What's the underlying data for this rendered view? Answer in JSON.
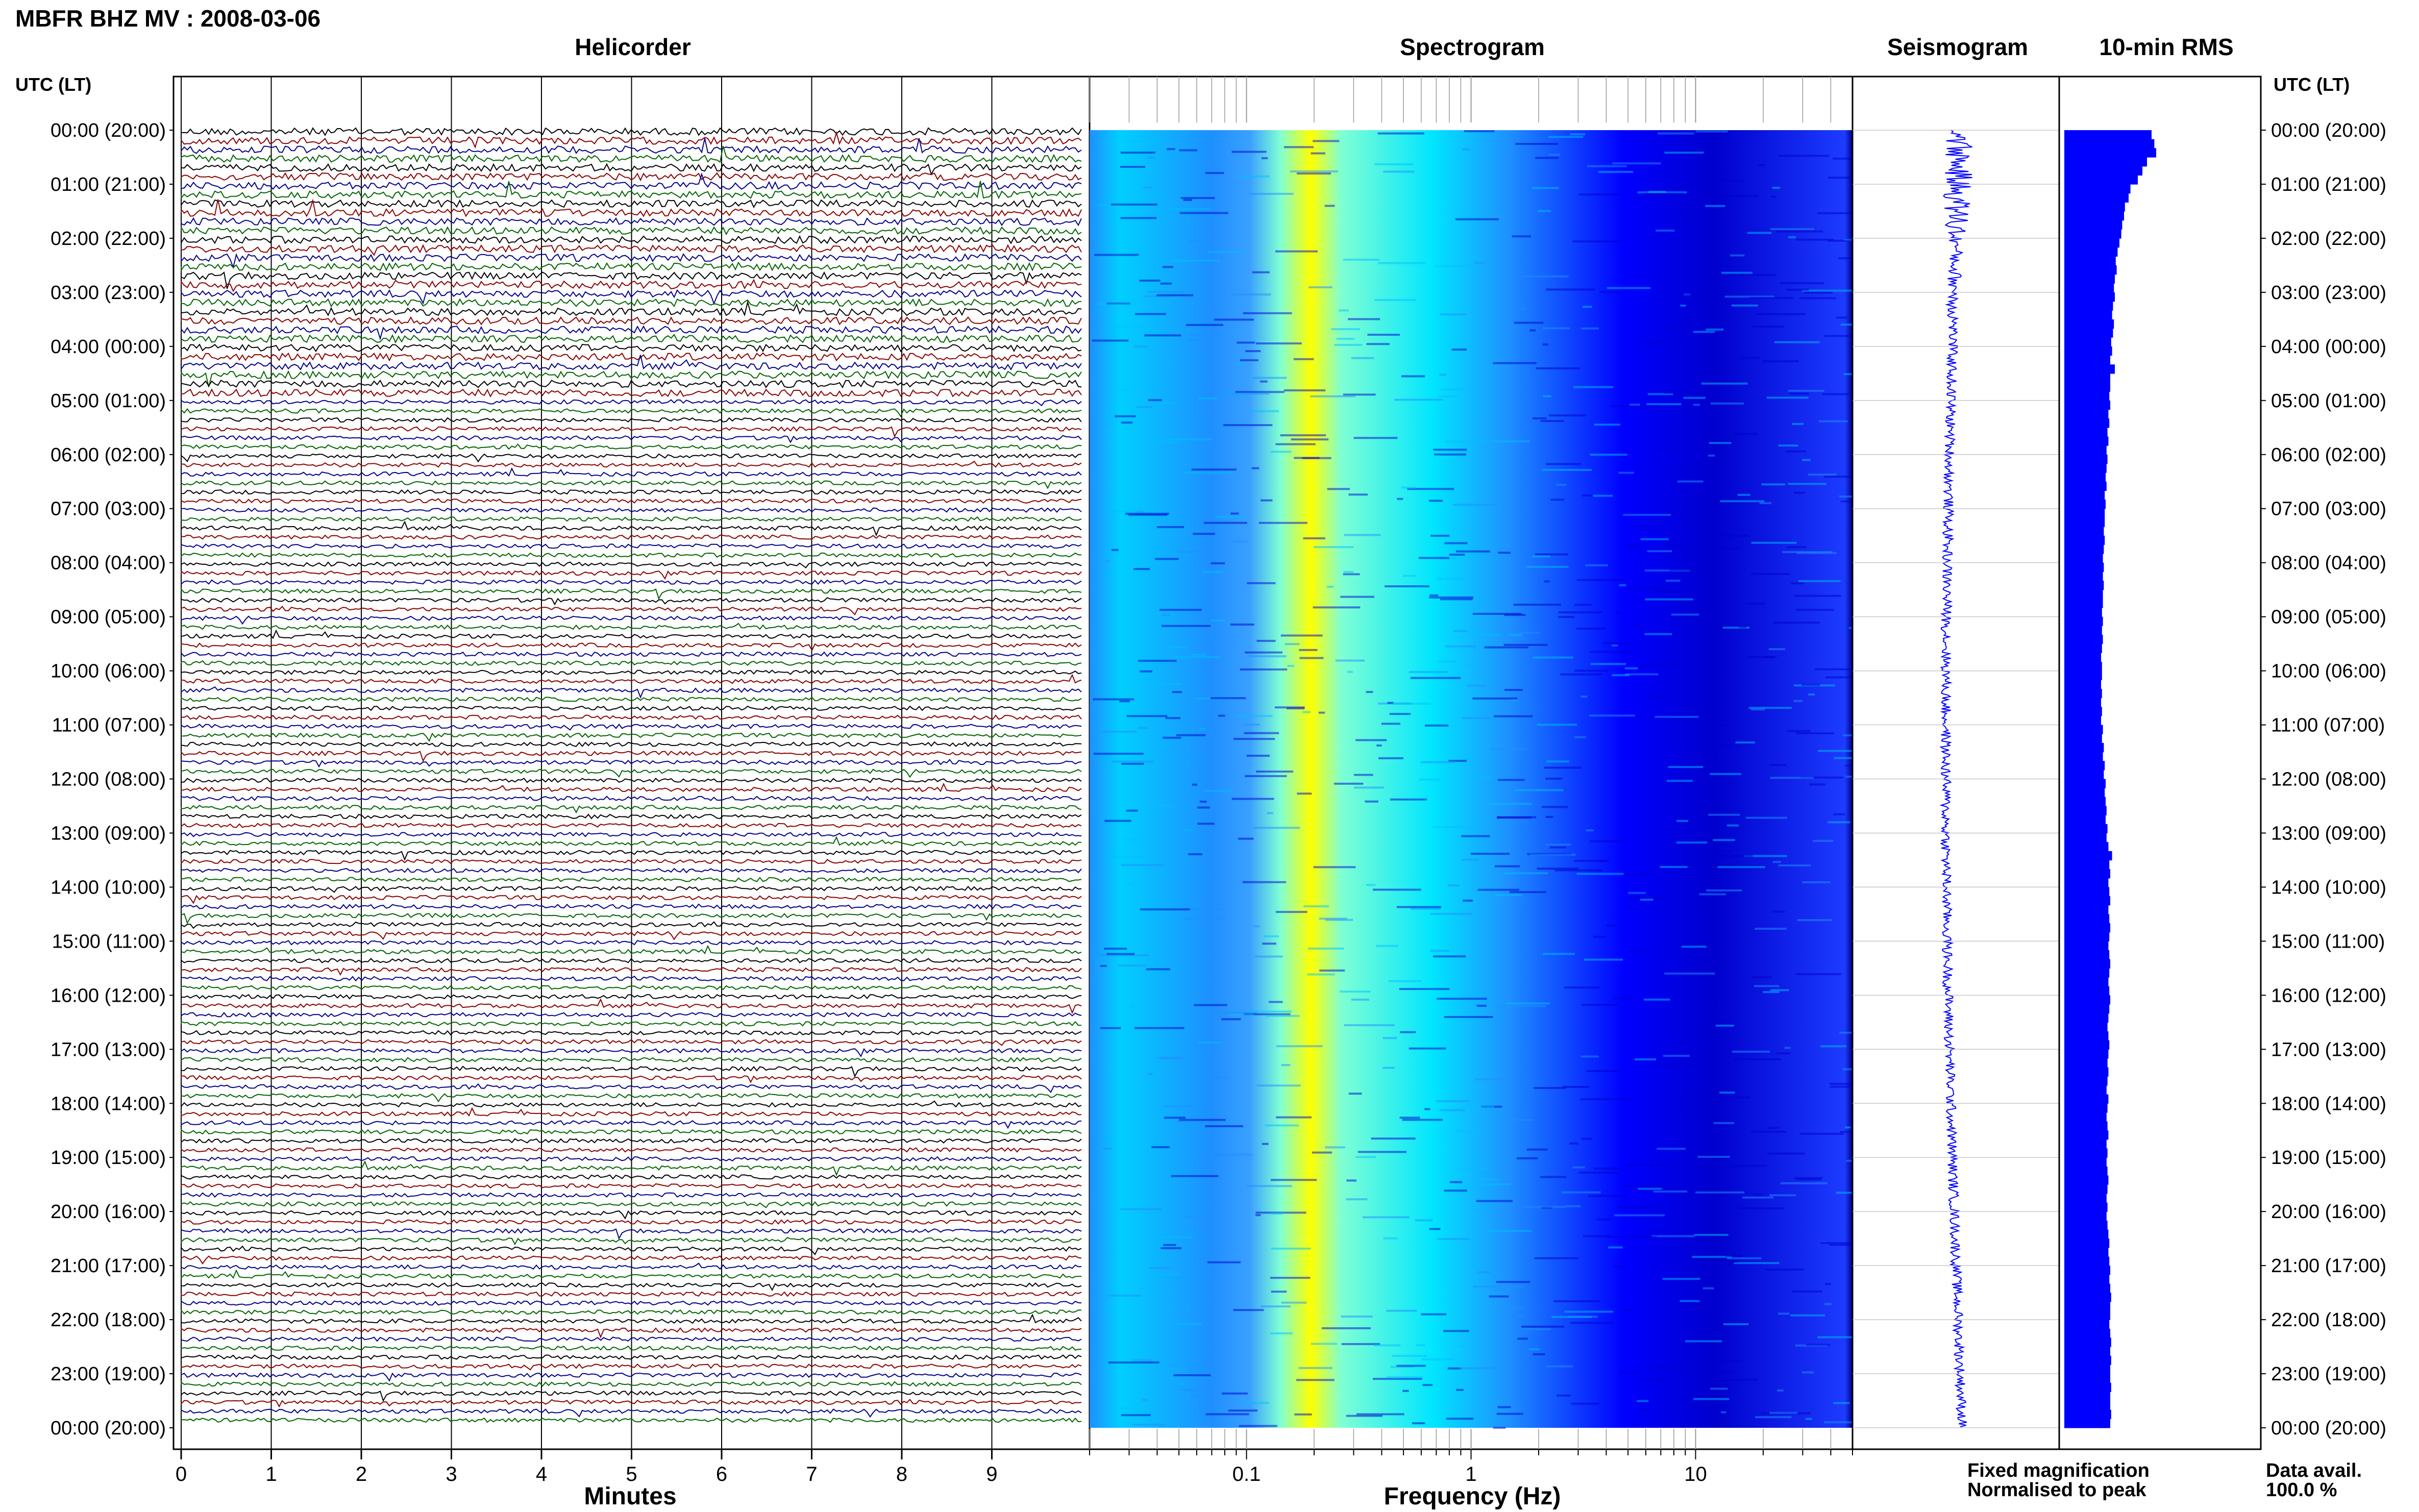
{
  "header": {
    "station_title": "MBFR BHZ MV : 2008-03-06",
    "utc_lt_label": "UTC (LT)"
  },
  "panels": {
    "helicorder": "Helicorder",
    "spectrogram": "Spectrogram",
    "seismogram": "Seismogram",
    "rms": "10-min RMS"
  },
  "legend": {
    "fixed_magnification": "Fixed magnification",
    "normalised_to_peak": "Normalised to peak",
    "fixed_color": "#0000ff",
    "normalised_color": "#ff0000"
  },
  "data_availability": {
    "label": "Data avail.",
    "value": "100.0 %"
  },
  "colors": {
    "trace_cycle": [
      "#000000",
      "#8b0000",
      "#00008b",
      "#006400"
    ],
    "seismogram": "#0000ff",
    "rms_bars": "#0000ff",
    "spectrogram_colormap": [
      "#00008b",
      "#0000ff",
      "#1e90ff",
      "#00e5ff",
      "#7fffd4",
      "#ffff00"
    ]
  },
  "chart_data": [
    {
      "type": "line",
      "panel": "Helicorder",
      "xlabel": "Minutes",
      "x_ticks": [
        0,
        1,
        2,
        3,
        4,
        5,
        6,
        7,
        8,
        9
      ],
      "xlim": [
        0,
        10
      ],
      "y_tick_labels": [
        "00:00 (20:00)",
        "01:00 (21:00)",
        "02:00 (22:00)",
        "03:00 (23:00)",
        "04:00 (00:00)",
        "05:00 (01:00)",
        "06:00 (02:00)",
        "07:00 (03:00)",
        "08:00 (04:00)",
        "09:00 (05:00)",
        "10:00 (06:00)",
        "11:00 (07:00)",
        "12:00 (08:00)",
        "13:00 (09:00)",
        "14:00 (10:00)",
        "15:00 (11:00)",
        "16:00 (12:00)",
        "17:00 (13:00)",
        "18:00 (14:00)",
        "19:00 (15:00)",
        "20:00 (16:00)",
        "21:00 (17:00)",
        "22:00 (18:00)",
        "23:00 (19:00)",
        "00:00 (20:00)"
      ],
      "rows_per_hour": 6,
      "total_rows": 144
    },
    {
      "type": "heatmap",
      "panel": "Spectrogram",
      "xlabel": "Frequency (Hz)",
      "x_scale": "log",
      "xlim": [
        0.02,
        50
      ],
      "x_tick_labels": [
        "0.1",
        "1",
        "10"
      ],
      "x_tick_values": [
        0.1,
        1,
        10
      ],
      "peak_frequency_hz": 0.25
    },
    {
      "type": "line",
      "panel": "Seismogram"
    },
    {
      "type": "bar",
      "panel": "10-min RMS",
      "orientation": "horizontal",
      "values": [
        0.95,
        0.98,
        1.0,
        0.9,
        0.85,
        0.8,
        0.72,
        0.7,
        0.66,
        0.65,
        0.63,
        0.62,
        0.6,
        0.58,
        0.56,
        0.57,
        0.55,
        0.54,
        0.55,
        0.53,
        0.52,
        0.54,
        0.53,
        0.51,
        0.52,
        0.5,
        0.55,
        0.5,
        0.5,
        0.49,
        0.5,
        0.48,
        0.49,
        0.47,
        0.48,
        0.46,
        0.47,
        0.46,
        0.45,
        0.46,
        0.44,
        0.45,
        0.44,
        0.44,
        0.43,
        0.44,
        0.43,
        0.42,
        0.43,
        0.42,
        0.43,
        0.42,
        0.42,
        0.41,
        0.42,
        0.41,
        0.42,
        0.41,
        0.4,
        0.41,
        0.41,
        0.4,
        0.41,
        0.4,
        0.41,
        0.4,
        0.42,
        0.41,
        0.43,
        0.42,
        0.44,
        0.43,
        0.45,
        0.44,
        0.45,
        0.46,
        0.45,
        0.47,
        0.46,
        0.48,
        0.52,
        0.49,
        0.5,
        0.48,
        0.49,
        0.5,
        0.48,
        0.49,
        0.5,
        0.49,
        0.48,
        0.49,
        0.5,
        0.49,
        0.48,
        0.49,
        0.5,
        0.49,
        0.48,
        0.47,
        0.48,
        0.49,
        0.48,
        0.47,
        0.48,
        0.47,
        0.46,
        0.48,
        0.47,
        0.46,
        0.47,
        0.48,
        0.46,
        0.47,
        0.46,
        0.47,
        0.48,
        0.47,
        0.46,
        0.47,
        0.46,
        0.47,
        0.48,
        0.49,
        0.48,
        0.49,
        0.5,
        0.49,
        0.5,
        0.51,
        0.5,
        0.5,
        0.49,
        0.5,
        0.51,
        0.5,
        0.51,
        0.5,
        0.5,
        0.51,
        0.5,
        0.5,
        0.51,
        0.5
      ]
    }
  ]
}
